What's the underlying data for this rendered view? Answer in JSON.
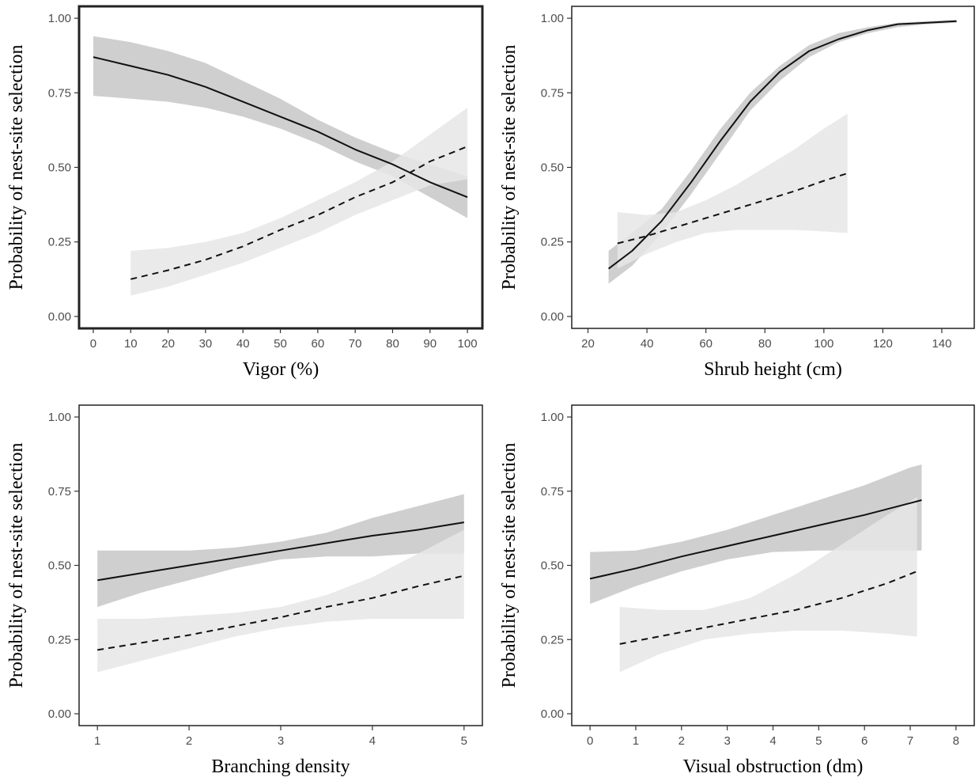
{
  "colors": {
    "solid_line": "#111111",
    "solid_ribbon": "#bdbdbd",
    "dashed_line": "#111111",
    "dashed_ribbon": "#e6e6e6",
    "panel_border": "#222222",
    "tick_text": "#4d4d4d"
  },
  "chart_data": [
    {
      "type": "line",
      "title": "",
      "xlabel": "Vigor (%)",
      "ylabel": "Probability of nest-site selection",
      "xlim": [
        -3.8,
        104
      ],
      "ylim": [
        -0.04,
        1.04
      ],
      "xticks": [
        0,
        10,
        20,
        30,
        40,
        50,
        60,
        70,
        80,
        90,
        100
      ],
      "xtick_labels": [
        "0",
        "10",
        "20",
        "30",
        "40",
        "50",
        "60",
        "70",
        "80",
        "90",
        "100"
      ],
      "yticks": [
        0,
        0.25,
        0.5,
        0.75,
        1.0
      ],
      "ytick_labels": [
        "0.00",
        "0.25",
        "0.50",
        "0.75",
        "1.00"
      ],
      "grid": false,
      "series": [
        {
          "line_style": "solid",
          "x": [
            0,
            10,
            20,
            30,
            40,
            50,
            60,
            70,
            80,
            90,
            100
          ],
          "y": [
            0.87,
            0.84,
            0.81,
            0.77,
            0.72,
            0.67,
            0.62,
            0.56,
            0.51,
            0.45,
            0.4
          ],
          "lower": [
            0.74,
            0.73,
            0.72,
            0.7,
            0.67,
            0.63,
            0.58,
            0.52,
            0.47,
            0.4,
            0.33
          ],
          "upper": [
            0.94,
            0.92,
            0.89,
            0.85,
            0.79,
            0.73,
            0.66,
            0.6,
            0.55,
            0.51,
            0.47
          ]
        },
        {
          "line_style": "dashed",
          "x": [
            10,
            20,
            30,
            40,
            50,
            60,
            70,
            80,
            90,
            100
          ],
          "y": [
            0.125,
            0.155,
            0.19,
            0.235,
            0.29,
            0.34,
            0.4,
            0.45,
            0.52,
            0.57
          ],
          "lower": [
            0.07,
            0.1,
            0.14,
            0.18,
            0.23,
            0.28,
            0.34,
            0.39,
            0.44,
            0.46
          ],
          "upper": [
            0.22,
            0.23,
            0.25,
            0.28,
            0.33,
            0.39,
            0.45,
            0.52,
            0.61,
            0.7
          ]
        }
      ]
    },
    {
      "type": "line",
      "title": "",
      "xlabel": "Shrub height (cm)",
      "ylabel": "Probability of nest-site selection",
      "xlim": [
        14.5,
        151
      ],
      "ylim": [
        -0.04,
        1.04
      ],
      "xticks": [
        20,
        40,
        60,
        80,
        100,
        120,
        140
      ],
      "xtick_labels": [
        "20",
        "40",
        "60",
        "80",
        "100",
        "120",
        "140"
      ],
      "yticks": [
        0,
        0.25,
        0.5,
        0.75,
        1.0
      ],
      "ytick_labels": [
        "0.00",
        "0.25",
        "0.50",
        "0.75",
        "1.00"
      ],
      "grid": false,
      "series": [
        {
          "line_style": "solid",
          "x": [
            27,
            35,
            45,
            55,
            65,
            75,
            85,
            95,
            105,
            115,
            125,
            135,
            145
          ],
          "y": [
            0.16,
            0.22,
            0.32,
            0.45,
            0.59,
            0.72,
            0.82,
            0.89,
            0.93,
            0.96,
            0.98,
            0.985,
            0.99
          ],
          "lower": [
            0.11,
            0.17,
            0.28,
            0.41,
            0.55,
            0.69,
            0.79,
            0.87,
            0.92,
            0.95,
            0.97,
            0.98,
            0.985
          ],
          "upper": [
            0.22,
            0.28,
            0.36,
            0.49,
            0.63,
            0.75,
            0.84,
            0.91,
            0.95,
            0.97,
            0.985,
            0.99,
            0.995
          ]
        },
        {
          "line_style": "dashed",
          "x": [
            30,
            40,
            50,
            60,
            70,
            80,
            90,
            100,
            108
          ],
          "y": [
            0.245,
            0.27,
            0.3,
            0.33,
            0.36,
            0.39,
            0.42,
            0.455,
            0.48
          ],
          "lower": [
            0.16,
            0.21,
            0.25,
            0.28,
            0.29,
            0.29,
            0.29,
            0.285,
            0.28
          ],
          "upper": [
            0.35,
            0.34,
            0.35,
            0.39,
            0.44,
            0.5,
            0.56,
            0.63,
            0.68
          ]
        }
      ]
    },
    {
      "type": "line",
      "title": "",
      "xlabel": "Branching density",
      "ylabel": "Probability of nest-site selection",
      "xlim": [
        0.8,
        5.2
      ],
      "ylim": [
        -0.04,
        1.04
      ],
      "xticks": [
        1,
        2,
        3,
        4,
        5
      ],
      "xtick_labels": [
        "1",
        "2",
        "3",
        "4",
        "5"
      ],
      "yticks": [
        0,
        0.25,
        0.5,
        0.75,
        1.0
      ],
      "ytick_labels": [
        "0.00",
        "0.25",
        "0.50",
        "0.75",
        "1.00"
      ],
      "grid": false,
      "series": [
        {
          "line_style": "solid",
          "x": [
            1,
            1.5,
            2,
            2.5,
            3,
            3.5,
            4,
            4.5,
            5
          ],
          "y": [
            0.45,
            0.475,
            0.5,
            0.525,
            0.55,
            0.575,
            0.6,
            0.62,
            0.645
          ],
          "lower": [
            0.36,
            0.41,
            0.45,
            0.49,
            0.52,
            0.53,
            0.53,
            0.54,
            0.54
          ],
          "upper": [
            0.55,
            0.55,
            0.55,
            0.56,
            0.58,
            0.61,
            0.66,
            0.7,
            0.74
          ]
        },
        {
          "line_style": "dashed",
          "x": [
            1,
            1.5,
            2,
            2.5,
            3,
            3.5,
            4,
            4.5,
            5
          ],
          "y": [
            0.215,
            0.24,
            0.265,
            0.295,
            0.325,
            0.36,
            0.39,
            0.43,
            0.465
          ],
          "lower": [
            0.14,
            0.18,
            0.22,
            0.26,
            0.29,
            0.31,
            0.32,
            0.32,
            0.32
          ],
          "upper": [
            0.32,
            0.32,
            0.33,
            0.34,
            0.36,
            0.4,
            0.46,
            0.54,
            0.62
          ]
        }
      ]
    },
    {
      "type": "line",
      "title": "",
      "xlabel": "Visual obstruction (dm)",
      "ylabel": "Probability of nest-site selection",
      "xlim": [
        -0.4,
        8.4
      ],
      "ylim": [
        -0.04,
        1.04
      ],
      "xticks": [
        0,
        1,
        2,
        3,
        4,
        5,
        6,
        7,
        8
      ],
      "xtick_labels": [
        "0",
        "1",
        "2",
        "3",
        "4",
        "5",
        "6",
        "7",
        "8"
      ],
      "yticks": [
        0,
        0.25,
        0.5,
        0.75,
        1.0
      ],
      "ytick_labels": [
        "0.00",
        "0.25",
        "0.50",
        "0.75",
        "1.00"
      ],
      "grid": false,
      "series": [
        {
          "line_style": "solid",
          "x": [
            0,
            1,
            2,
            3,
            4,
            5,
            6,
            7,
            7.25
          ],
          "y": [
            0.455,
            0.49,
            0.53,
            0.565,
            0.6,
            0.635,
            0.67,
            0.71,
            0.72
          ],
          "lower": [
            0.37,
            0.43,
            0.48,
            0.52,
            0.545,
            0.55,
            0.55,
            0.55,
            0.55
          ],
          "upper": [
            0.545,
            0.55,
            0.58,
            0.62,
            0.67,
            0.72,
            0.77,
            0.83,
            0.84
          ]
        },
        {
          "line_style": "dashed",
          "x": [
            0.65,
            1.5,
            2.5,
            3.5,
            4.5,
            5.5,
            6.5,
            7.15
          ],
          "y": [
            0.235,
            0.26,
            0.29,
            0.32,
            0.35,
            0.39,
            0.44,
            0.48
          ],
          "lower": [
            0.14,
            0.2,
            0.25,
            0.27,
            0.28,
            0.28,
            0.27,
            0.26
          ],
          "upper": [
            0.36,
            0.35,
            0.35,
            0.39,
            0.47,
            0.57,
            0.67,
            0.73
          ]
        }
      ]
    }
  ]
}
